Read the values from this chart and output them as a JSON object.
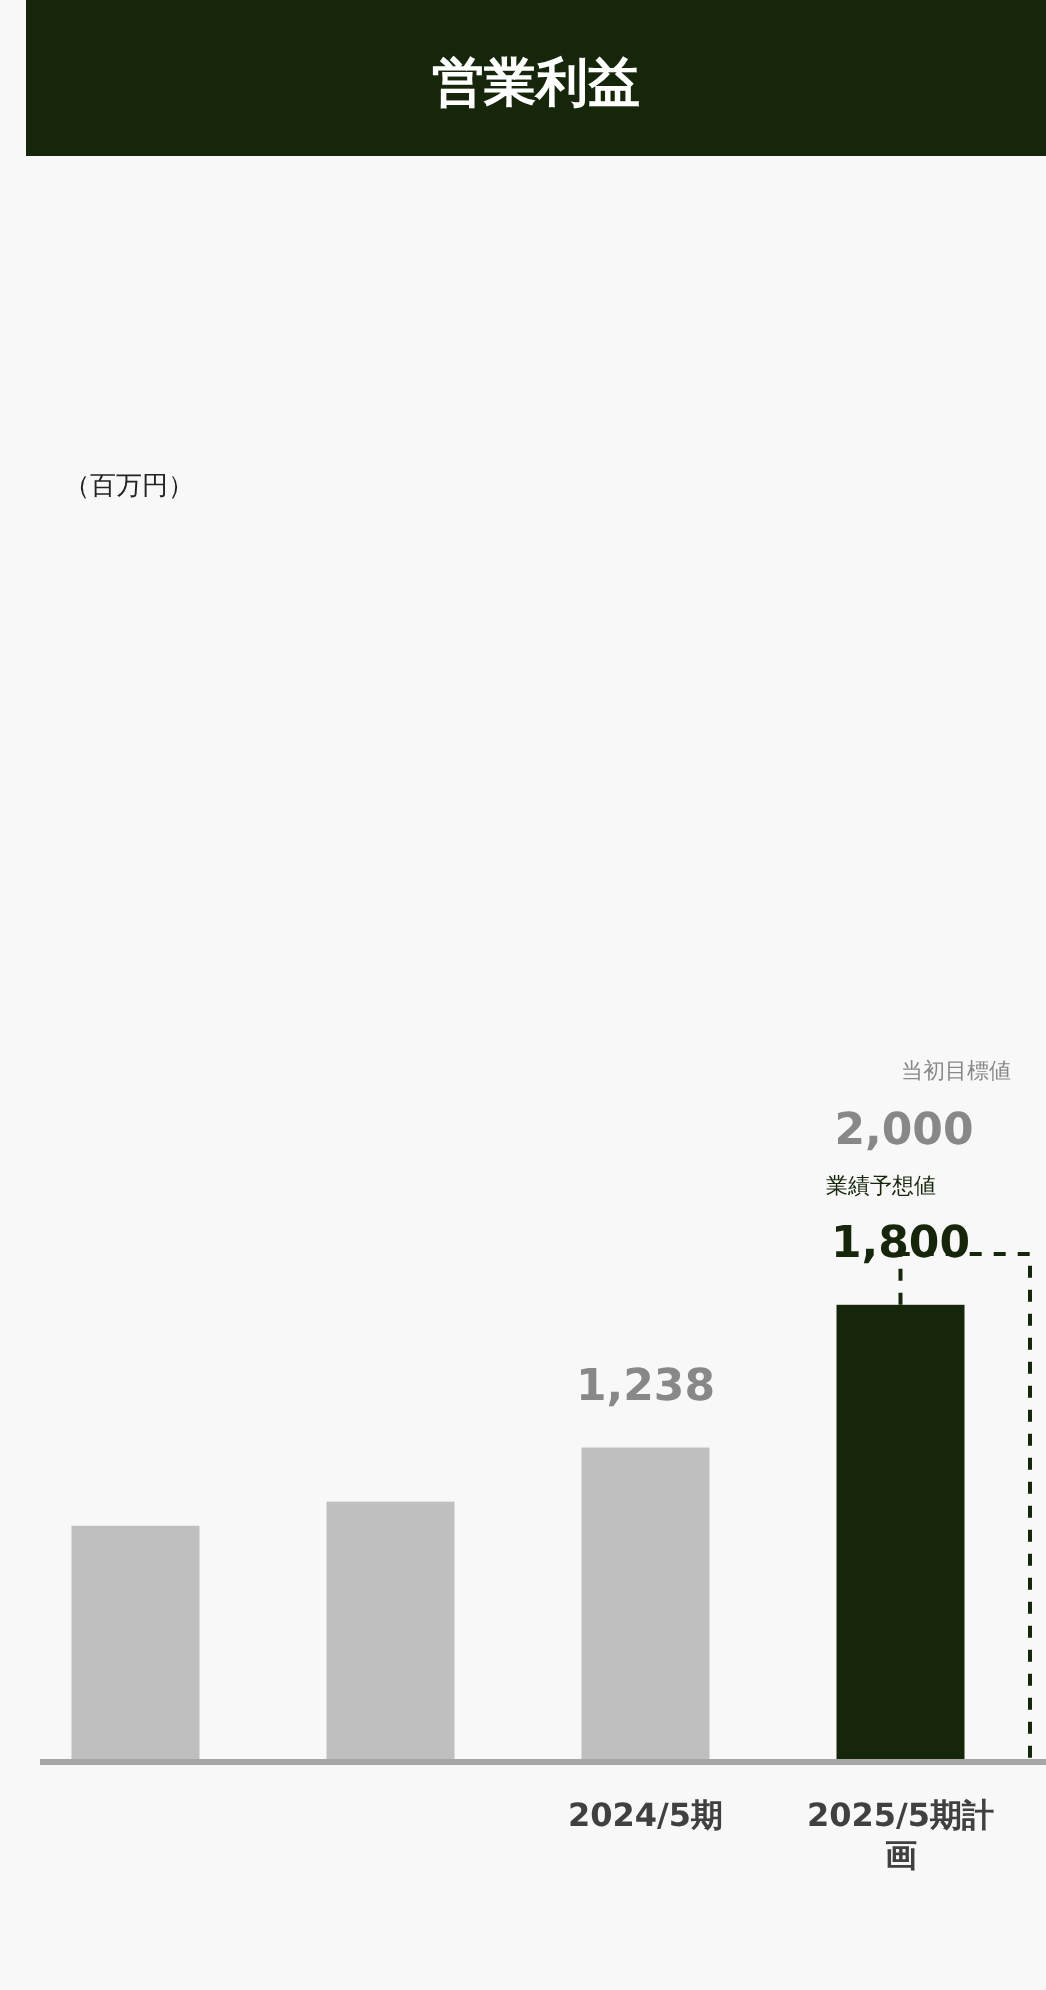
{
  "chart_data": {
    "type": "bar",
    "title": "営業利益",
    "categories": [
      null,
      null,
      "2024/5期",
      "2025/5期計画"
    ],
    "values": [
      930,
      1025,
      1238,
      1800
    ],
    "colors": [
      "#bfbfbf",
      "#bfbfbf",
      "#bfbfbf",
      "#16260a"
    ],
    "value_labels": [
      null,
      null,
      "1,238",
      "1,800"
    ],
    "ref_lines": [
      {
        "axis": "y",
        "value": 2000,
        "label": "2,000",
        "color": "#16260a",
        "line_style": "dashed"
      }
    ],
    "annotations": [
      "（百万円）",
      "業績予想値",
      "当初目標値"
    ]
  }
}
